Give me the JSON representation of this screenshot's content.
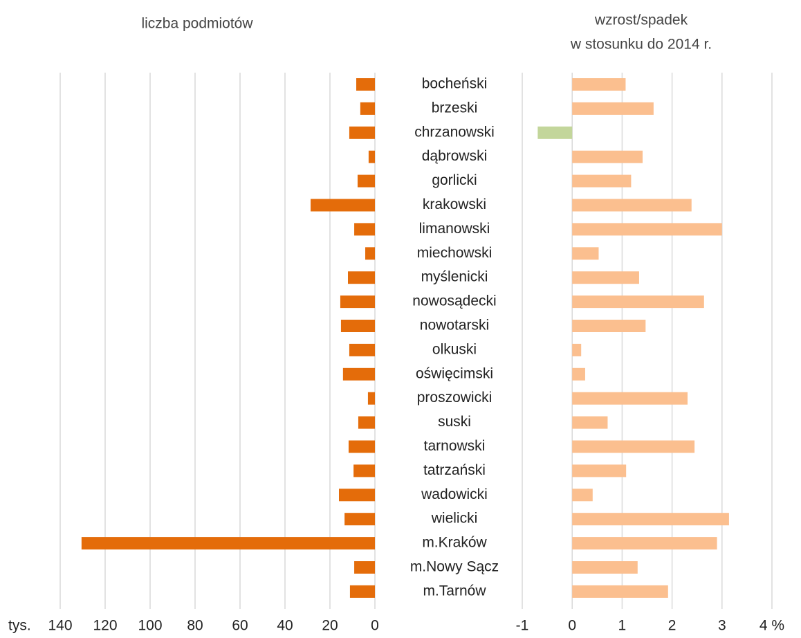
{
  "chart_data": [
    {
      "type": "bar",
      "orientation": "horizontal",
      "title": "liczba podmiotów",
      "unit": "tys.",
      "categories": [
        "bocheński",
        "brzeski",
        "chrzanowski",
        "dąbrowski",
        "gorlicki",
        "krakowski",
        "limanowski",
        "miechowski",
        "myślenicki",
        "nowosądecki",
        "nowotarski",
        "olkuski",
        "oświęcimski",
        "proszowicki",
        "suski",
        "tarnowski",
        "tatrzański",
        "wadowicki",
        "wielicki",
        "m.Kraków",
        "m.Nowy Sącz",
        "m.Tarnów"
      ],
      "values": [
        8.3,
        6.5,
        11.4,
        2.8,
        7.7,
        28.6,
        9.2,
        4.3,
        12,
        15.4,
        15.1,
        11.4,
        14.2,
        3.1,
        7.4,
        11.7,
        9.5,
        16,
        13.5,
        130.5,
        9.2,
        11.1
      ],
      "color": "#e46c0a",
      "xlim": [
        140,
        0
      ],
      "xticks": [
        140,
        120,
        100,
        80,
        60,
        40,
        20,
        0
      ],
      "grid": true
    },
    {
      "type": "bar",
      "orientation": "horizontal",
      "title": [
        "wzrost/spadek",
        "w stosunku do 2014 r."
      ],
      "values": [
        1.07,
        1.63,
        -0.69,
        1.41,
        1.18,
        2.39,
        3.0,
        0.53,
        1.34,
        2.64,
        1.47,
        0.18,
        0.26,
        2.31,
        0.71,
        2.45,
        1.08,
        0.41,
        3.14,
        2.9,
        1.31,
        1.92
      ],
      "color": "#fbbf8f",
      "negative_color": "#c3d69b",
      "xlim": [
        -1,
        4
      ],
      "xticks": [
        -1,
        0,
        1,
        2,
        3,
        {
          "value": 4,
          "label": "4 %"
        }
      ],
      "grid": true
    }
  ]
}
